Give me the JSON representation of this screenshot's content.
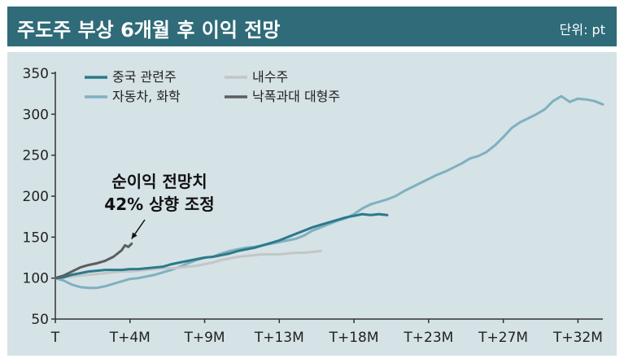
{
  "header": {
    "title": "주도주 부상 6개월 후 이익 전망",
    "unit": "단위: pt"
  },
  "chart_data": {
    "type": "line",
    "title": "주도주 부상 6개월 후 이익 전망",
    "unit": "단위: pt",
    "x_tick_labels": [
      "T",
      "T+4M",
      "T+9M",
      "T+13M",
      "T+18M",
      "T+23M",
      "T+27M",
      "T+32M"
    ],
    "x_tick_months": [
      0,
      4.5,
      9,
      13.5,
      18,
      22.5,
      27,
      31.5
    ],
    "xlim": [
      0,
      33
    ],
    "ylim": [
      50,
      350
    ],
    "y_ticks": [
      50,
      100,
      150,
      200,
      250,
      300,
      350
    ],
    "grid": false,
    "legend_position": "top-left",
    "annotation": {
      "lines": [
        "순이익 전망치",
        "42% 상향 조정"
      ],
      "target_series": "낙폭과대 대형주",
      "target_x": 4.4,
      "target_y": 142
    },
    "series": [
      {
        "name": "중국 관련주",
        "color": "#2b7a8a",
        "points": [
          [
            0,
            100
          ],
          [
            0.5,
            101
          ],
          [
            1,
            104
          ],
          [
            1.5,
            106
          ],
          [
            2,
            108
          ],
          [
            2.5,
            109
          ],
          [
            3,
            110
          ],
          [
            3.5,
            110
          ],
          [
            4,
            110
          ],
          [
            4.5,
            111
          ],
          [
            5,
            111
          ],
          [
            5.5,
            112
          ],
          [
            6,
            113
          ],
          [
            6.5,
            114
          ],
          [
            7,
            117
          ],
          [
            7.5,
            119
          ],
          [
            8,
            121
          ],
          [
            8.5,
            123
          ],
          [
            9,
            125
          ],
          [
            9.5,
            126
          ],
          [
            10,
            128
          ],
          [
            10.5,
            130
          ],
          [
            11,
            133
          ],
          [
            11.5,
            135
          ],
          [
            12,
            137
          ],
          [
            12.5,
            140
          ],
          [
            13,
            143
          ],
          [
            13.5,
            146
          ],
          [
            14,
            150
          ],
          [
            14.5,
            154
          ],
          [
            15,
            158
          ],
          [
            15.5,
            162
          ],
          [
            16,
            165
          ],
          [
            16.5,
            168
          ],
          [
            17,
            171
          ],
          [
            17.5,
            174
          ],
          [
            18,
            176
          ],
          [
            18.5,
            178
          ],
          [
            19,
            177
          ],
          [
            19.5,
            178
          ],
          [
            20,
            177
          ]
        ]
      },
      {
        "name": "자동차, 화학",
        "color": "#7fb0c0",
        "points": [
          [
            0,
            100
          ],
          [
            0.5,
            97
          ],
          [
            1,
            92
          ],
          [
            1.5,
            89
          ],
          [
            2,
            88
          ],
          [
            2.5,
            88
          ],
          [
            3,
            90
          ],
          [
            3.5,
            93
          ],
          [
            4,
            96
          ],
          [
            4.5,
            99
          ],
          [
            5,
            100
          ],
          [
            5.5,
            102
          ],
          [
            6,
            104
          ],
          [
            6.5,
            107
          ],
          [
            7,
            110
          ],
          [
            7.5,
            114
          ],
          [
            8,
            118
          ],
          [
            8.5,
            122
          ],
          [
            9,
            125
          ],
          [
            9.5,
            126
          ],
          [
            10,
            130
          ],
          [
            10.5,
            133
          ],
          [
            11,
            135
          ],
          [
            11.5,
            137
          ],
          [
            12,
            138
          ],
          [
            12.5,
            140
          ],
          [
            13,
            142
          ],
          [
            13.5,
            144
          ],
          [
            14,
            146
          ],
          [
            14.5,
            148
          ],
          [
            15,
            152
          ],
          [
            15.5,
            158
          ],
          [
            16,
            162
          ],
          [
            16.5,
            166
          ],
          [
            17,
            170
          ],
          [
            17.5,
            173
          ],
          [
            18,
            178
          ],
          [
            18.5,
            185
          ],
          [
            19,
            190
          ],
          [
            19.5,
            193
          ],
          [
            20,
            196
          ],
          [
            20.5,
            200
          ],
          [
            21,
            206
          ],
          [
            21.5,
            211
          ],
          [
            22,
            216
          ],
          [
            22.5,
            221
          ],
          [
            23,
            226
          ],
          [
            23.5,
            230
          ],
          [
            24,
            235
          ],
          [
            24.5,
            240
          ],
          [
            25,
            246
          ],
          [
            25.5,
            249
          ],
          [
            26,
            254
          ],
          [
            26.5,
            262
          ],
          [
            27,
            272
          ],
          [
            27.5,
            283
          ],
          [
            28,
            290
          ],
          [
            28.5,
            295
          ],
          [
            29,
            300
          ],
          [
            29.5,
            306
          ],
          [
            30,
            316
          ],
          [
            30.5,
            322
          ],
          [
            31,
            315
          ],
          [
            31.5,
            319
          ],
          [
            32,
            318
          ],
          [
            32.5,
            316
          ],
          [
            33,
            312
          ]
        ]
      },
      {
        "name": "내수주",
        "color": "#c4c6c7",
        "points": [
          [
            0,
            100
          ],
          [
            0.5,
            101
          ],
          [
            1,
            102
          ],
          [
            1.5,
            103
          ],
          [
            2,
            104
          ],
          [
            2.5,
            105
          ],
          [
            3,
            106
          ],
          [
            3.5,
            107
          ],
          [
            4,
            108
          ],
          [
            4.5,
            108
          ],
          [
            5,
            109
          ],
          [
            5.5,
            110
          ],
          [
            6,
            111
          ],
          [
            6.5,
            112
          ],
          [
            7,
            112
          ],
          [
            7.5,
            113
          ],
          [
            8,
            114
          ],
          [
            8.5,
            115
          ],
          [
            9,
            117
          ],
          [
            9.5,
            119
          ],
          [
            10,
            122
          ],
          [
            10.5,
            124
          ],
          [
            11,
            126
          ],
          [
            11.5,
            127
          ],
          [
            12,
            128
          ],
          [
            12.5,
            129
          ],
          [
            13,
            129
          ],
          [
            13.5,
            129
          ],
          [
            14,
            130
          ],
          [
            14.5,
            131
          ],
          [
            15,
            131
          ],
          [
            15.5,
            132
          ],
          [
            16,
            133
          ]
        ]
      },
      {
        "name": "낙폭과대 대형주",
        "color": "#5b5e60",
        "points": [
          [
            0,
            100
          ],
          [
            0.5,
            103
          ],
          [
            1,
            108
          ],
          [
            1.5,
            113
          ],
          [
            2,
            116
          ],
          [
            2.5,
            118
          ],
          [
            3,
            121
          ],
          [
            3.5,
            126
          ],
          [
            4,
            134
          ],
          [
            4.2,
            140
          ],
          [
            4.4,
            138
          ],
          [
            4.6,
            142
          ]
        ]
      }
    ]
  }
}
